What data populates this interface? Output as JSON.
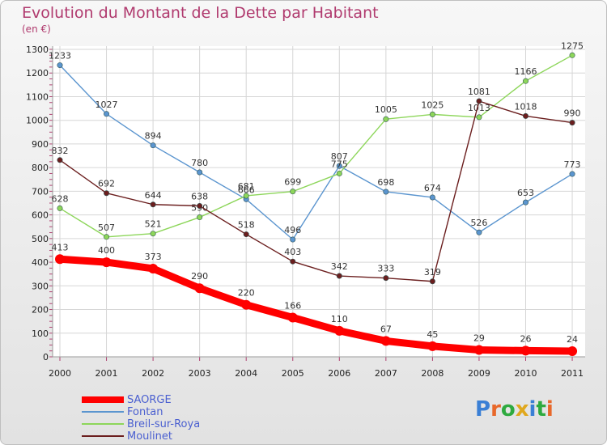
{
  "chart_data": {
    "type": "line",
    "title": "Evolution du Montant de la Dette par Habitant",
    "subtitle": "(en €)",
    "xlabel": "",
    "ylabel": "",
    "x": [
      "2000",
      "2001",
      "2002",
      "2003",
      "2004",
      "2005",
      "2006",
      "2007",
      "2008",
      "2009",
      "2010",
      "2011"
    ],
    "ylim": [
      0,
      1300
    ],
    "yticks": [
      0,
      100,
      200,
      300,
      400,
      500,
      600,
      700,
      800,
      900,
      1000,
      1100,
      1200,
      1300
    ],
    "grid": true,
    "legend_position": "bottom-left",
    "series": [
      {
        "name": "SAORGE",
        "color": "#ff0000",
        "values": [
          413,
          400,
          373,
          290,
          220,
          166,
          110,
          67,
          45,
          29,
          26,
          24
        ]
      },
      {
        "name": "Fontan",
        "color": "#5b95cf",
        "values": [
          1233,
          1027,
          894,
          780,
          666,
          496,
          807,
          698,
          674,
          526,
          653,
          773
        ]
      },
      {
        "name": "Breil-sur-Roya",
        "color": "#8dd65a",
        "values": [
          628,
          507,
          521,
          590,
          681,
          699,
          775,
          1005,
          1025,
          1013,
          1166,
          1275
        ]
      },
      {
        "name": "Moulinet",
        "color": "#6b1e1e",
        "values": [
          832,
          692,
          644,
          638,
          518,
          403,
          342,
          333,
          319,
          1081,
          1018,
          990
        ]
      }
    ]
  },
  "brand": {
    "letters": [
      {
        "ch": "P",
        "color": "#3a7fd5"
      },
      {
        "ch": "r",
        "color": "#e8682a"
      },
      {
        "ch": "o",
        "color": "#2eaa3f"
      },
      {
        "ch": "x",
        "color": "#e0a81e"
      },
      {
        "ch": "i",
        "color": "#3a7fd5"
      },
      {
        "ch": "t",
        "color": "#2eaa3f"
      },
      {
        "ch": "i",
        "color": "#e8682a"
      }
    ]
  }
}
